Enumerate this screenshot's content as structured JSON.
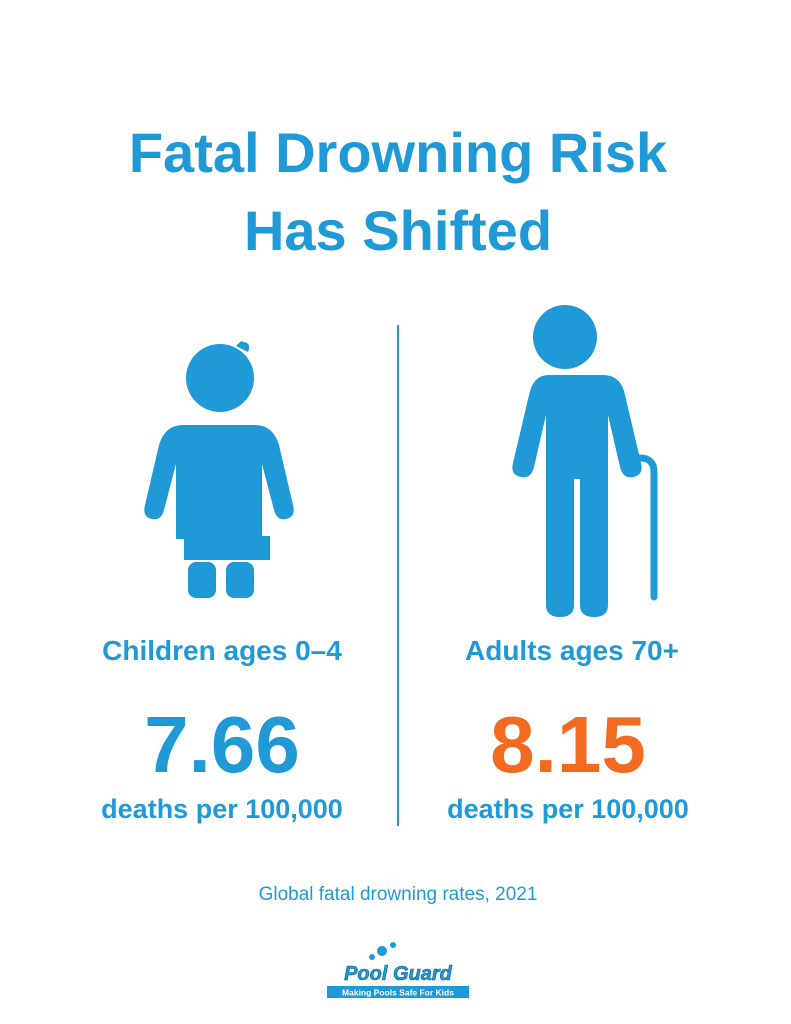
{
  "header": {
    "title_lines": [
      "Fatal Drowning Risk",
      "Has Shifted"
    ]
  },
  "groups": [
    {
      "label": "Children ages 0–4",
      "value": 7.66,
      "unit": "deaths per 100,000"
    },
    {
      "label": "Adults ages 70+",
      "value": 8.15,
      "unit": "deaths per 100,000"
    }
  ],
  "footnote": "Global fatal drowning rates, 2021",
  "logo": {
    "name": "Pool Guard",
    "tagline": "Making Pools Safe For Kids"
  }
}
